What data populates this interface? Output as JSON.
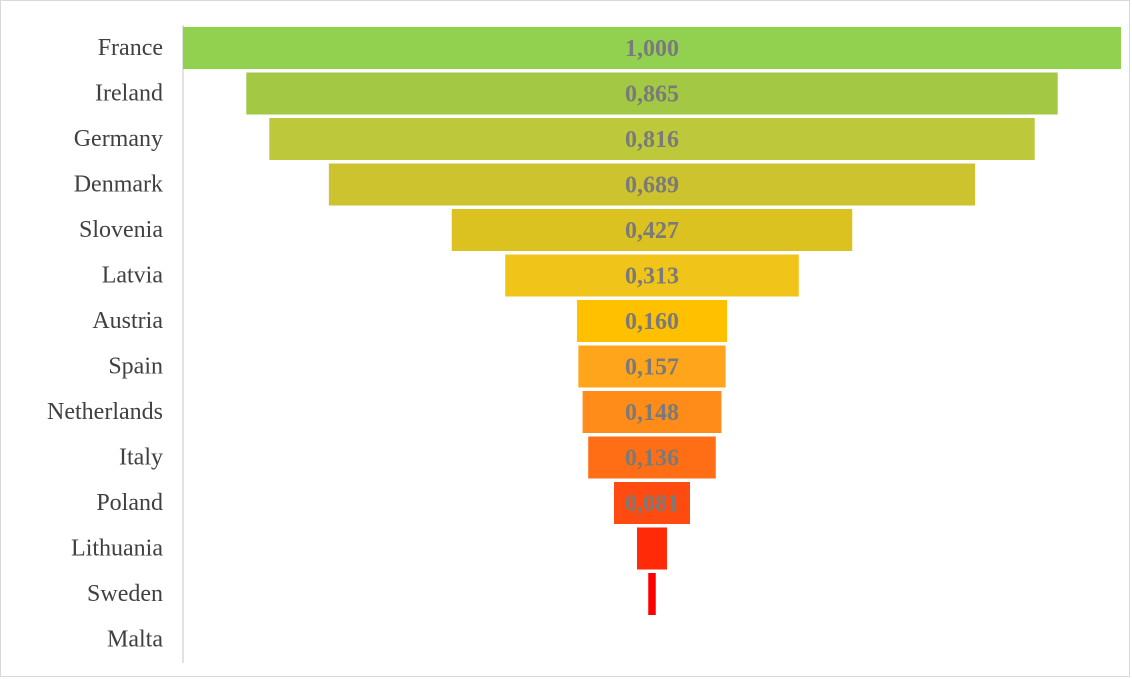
{
  "chart_data": {
    "type": "bar",
    "title": "",
    "xlabel": "",
    "ylabel": "",
    "categories": [
      "France",
      "Ireland",
      "Germany",
      "Denmark",
      "Slovenia",
      "Latvia",
      "Austria",
      "Spain",
      "Netherlands",
      "Italy",
      "Poland",
      "Lithuania",
      "Sweden",
      "Malta"
    ],
    "values": [
      1.0,
      0.865,
      0.816,
      0.689,
      0.427,
      0.313,
      0.16,
      0.157,
      0.148,
      0.136,
      0.081,
      0.032,
      0.008,
      0.0
    ],
    "value_labels": [
      "1,000",
      "0,865",
      "0,816",
      "0,689",
      "0,427",
      "0,313",
      "0,160",
      "0,157",
      "0,148",
      "0,136",
      "0,081",
      "",
      "",
      ""
    ],
    "colors": [
      "#92d050",
      "#a2c844",
      "#bdc93a",
      "#cdc32e",
      "#dcc220",
      "#f0c418",
      "#ffc000",
      "#ffa51c",
      "#ff8c18",
      "#ff6e14",
      "#ff4a10",
      "#ff2a08",
      "#ff0000",
      "#ff0000"
    ],
    "xlim": [
      0,
      1
    ],
    "grid": false,
    "legend": "none",
    "layout": "funnel-centered"
  }
}
